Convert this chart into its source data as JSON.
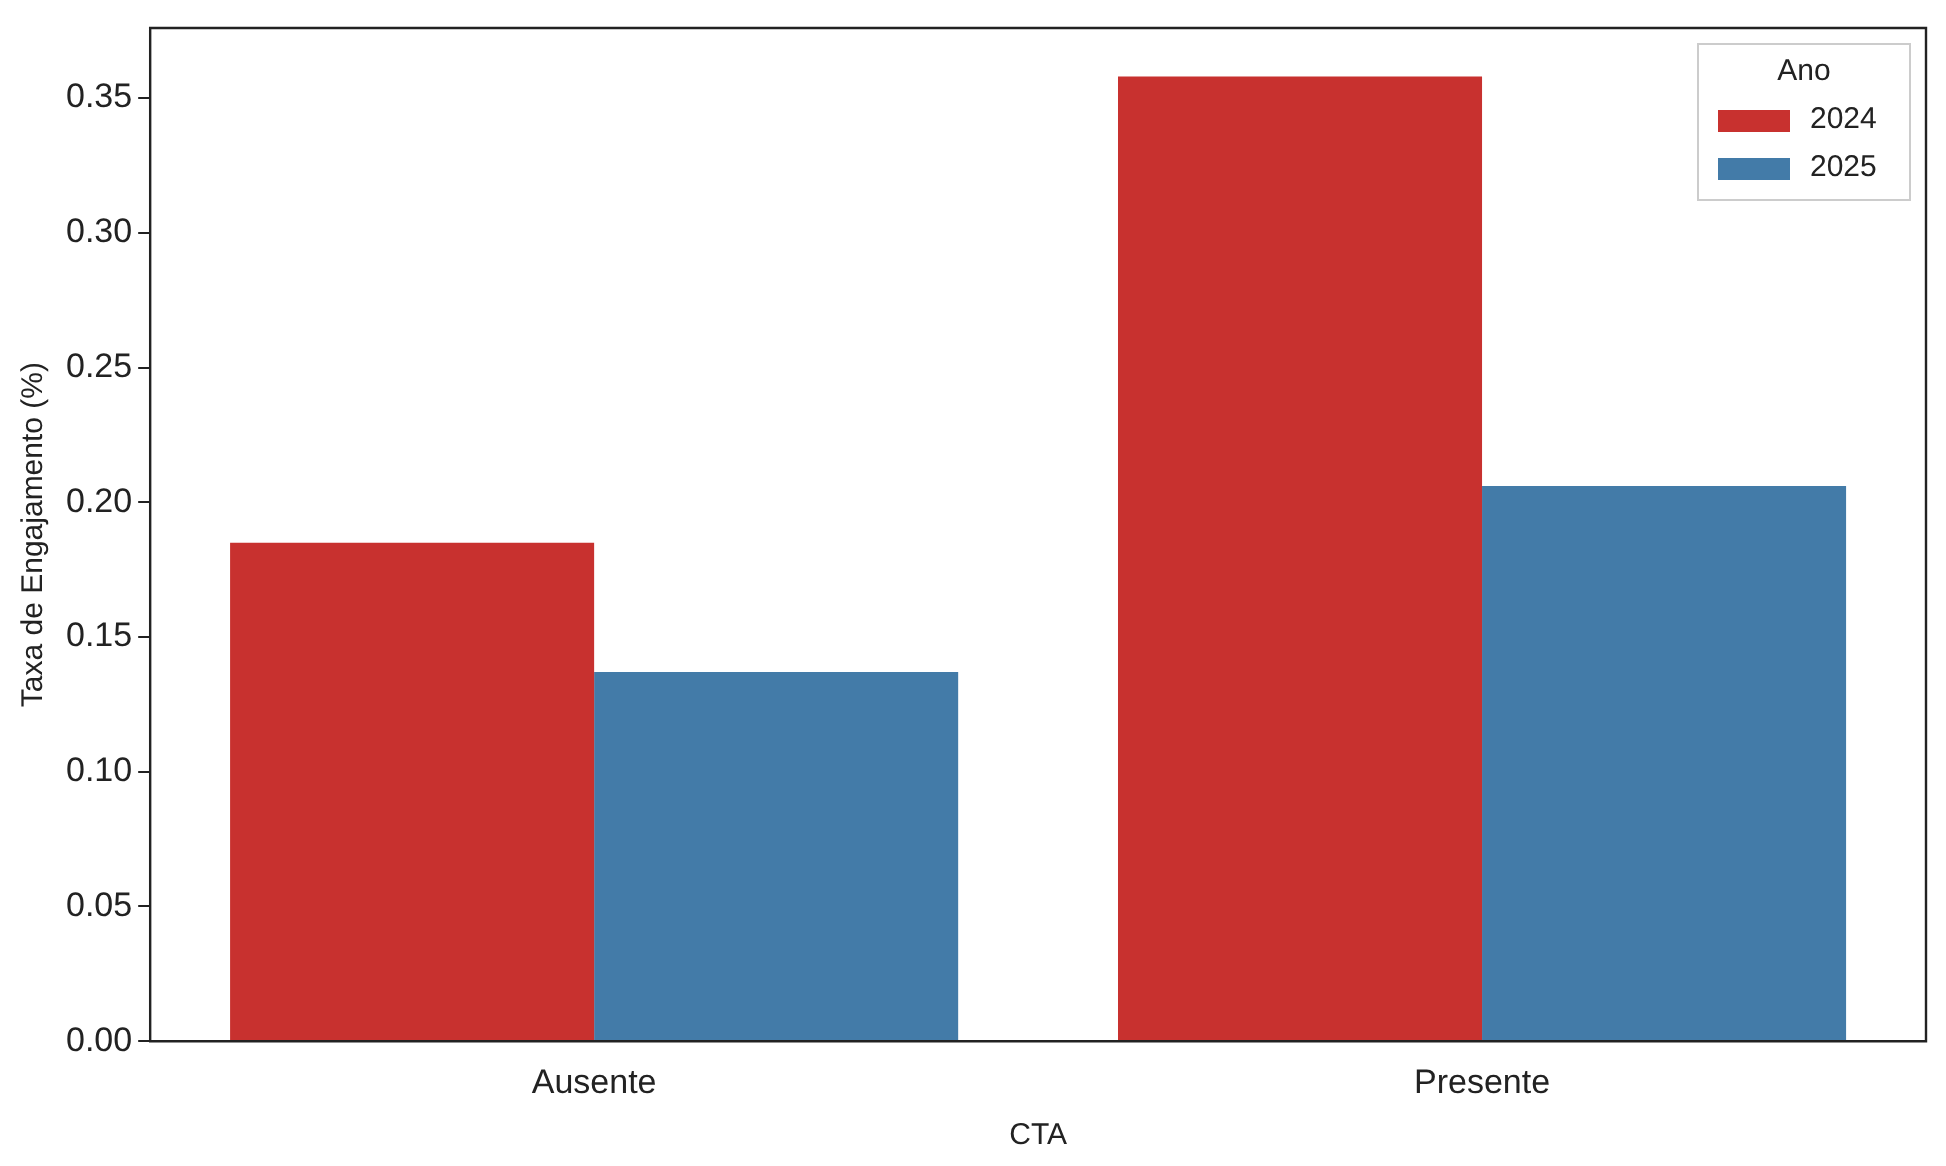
{
  "chart_data": {
    "type": "bar",
    "xlabel": "CTA",
    "ylabel": "Taxa de Engajamento (%)",
    "legend_title": "Ano",
    "categories": [
      "Ausente",
      "Presente"
    ],
    "series": [
      {
        "name": "2024",
        "color": "#c8312f",
        "values": [
          0.185,
          0.358
        ]
      },
      {
        "name": "2025",
        "color": "#437ba8",
        "values": [
          0.137,
          0.206
        ]
      }
    ],
    "ylim": [
      0,
      0.376
    ],
    "yticks": [
      {
        "value": 0,
        "label": "0.00"
      },
      {
        "value": 0.05,
        "label": "0.05"
      },
      {
        "value": 0.1,
        "label": "0.10"
      },
      {
        "value": 0.15,
        "label": "0.15"
      },
      {
        "value": 0.2,
        "label": "0.20"
      },
      {
        "value": 0.25,
        "label": "0.25"
      },
      {
        "value": 0.3,
        "label": "0.30"
      },
      {
        "value": 0.35,
        "label": "0.35"
      }
    ],
    "grid": false,
    "legend": "top right"
  }
}
